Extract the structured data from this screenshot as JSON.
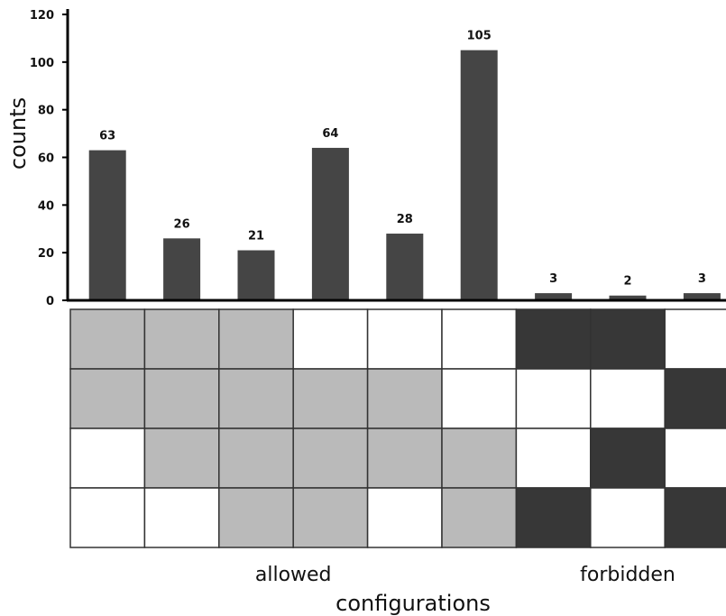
{
  "chart_data": {
    "type": "bar",
    "ylabel": "counts",
    "xlabel": "configurations",
    "ylim": [
      0,
      120
    ],
    "yticks": [
      0,
      20,
      40,
      60,
      80,
      100,
      120
    ],
    "values": [
      63,
      26,
      21,
      64,
      28,
      105,
      3,
      2,
      3
    ],
    "data_labels": [
      "63",
      "26",
      "21",
      "64",
      "28",
      "105",
      "3",
      "2",
      "3"
    ],
    "groups": [
      {
        "label": "allowed",
        "count": 6
      },
      {
        "label": "forbidden",
        "count": 3
      }
    ],
    "matrix": [
      [
        1,
        1,
        1,
        0,
        0,
        0,
        2,
        2,
        0
      ],
      [
        1,
        1,
        1,
        1,
        1,
        0,
        0,
        0,
        2
      ],
      [
        0,
        1,
        1,
        1,
        1,
        1,
        0,
        2,
        0
      ],
      [
        0,
        0,
        1,
        1,
        0,
        1,
        2,
        0,
        2
      ]
    ],
    "colors": {
      "bar": "#454545",
      "allowed_cell": "#bababa",
      "forbidden_cell": "#373737",
      "empty_cell": "#ffffff",
      "grid": "#333333"
    }
  }
}
